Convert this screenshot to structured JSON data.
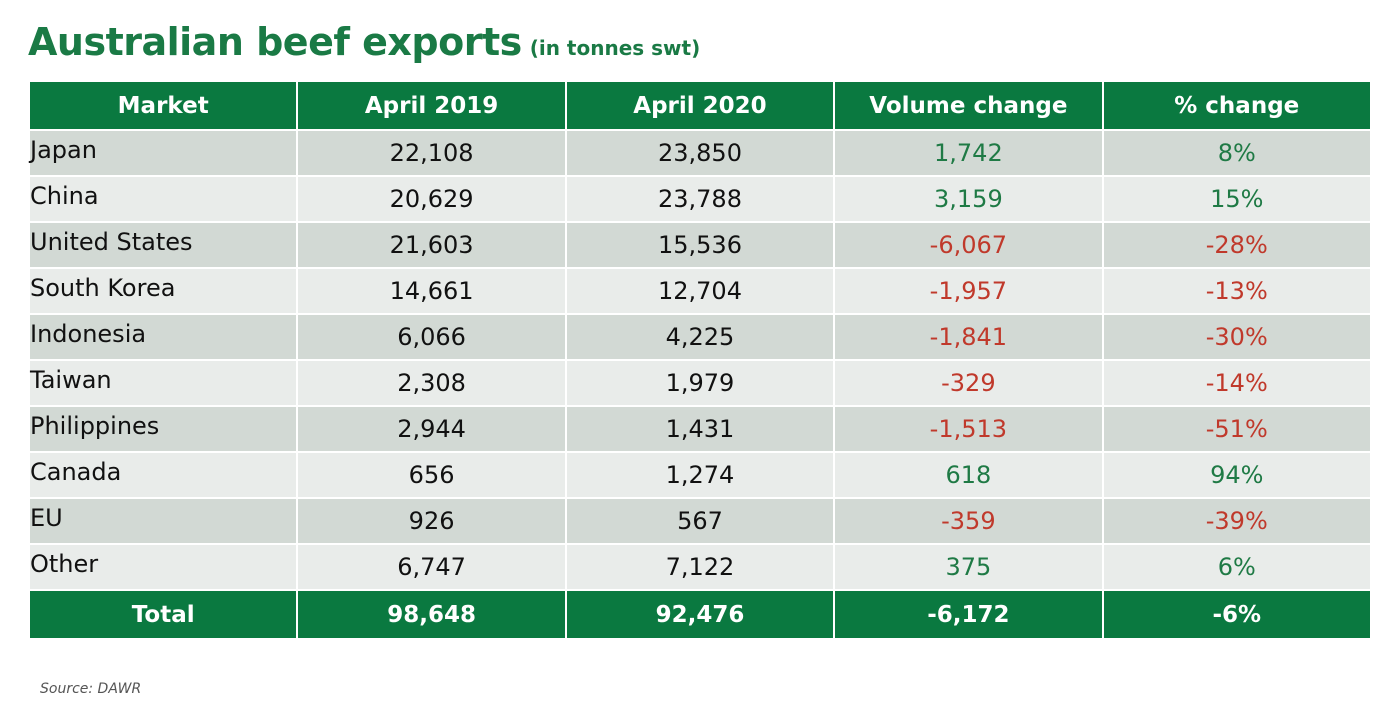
{
  "title": {
    "main": "Australian beef exports",
    "sub": "(in tonnes swt)",
    "color": "#1a7a45"
  },
  "table": {
    "headers": [
      "Market",
      "April 2019",
      "April 2020",
      "Volume change",
      "% change"
    ],
    "rows": [
      {
        "market": "Japan",
        "apr2019": "22,108",
        "apr2020": "23,850",
        "volume_change": "1,742",
        "pct_change": "8%",
        "trend": "positive"
      },
      {
        "market": "China",
        "apr2019": "20,629",
        "apr2020": "23,788",
        "volume_change": "3,159",
        "pct_change": "15%",
        "trend": "positive"
      },
      {
        "market": "United States",
        "apr2019": "21,603",
        "apr2020": "15,536",
        "volume_change": "-6,067",
        "pct_change": "-28%",
        "trend": "negative"
      },
      {
        "market": "South Korea",
        "apr2019": "14,661",
        "apr2020": "12,704",
        "volume_change": "-1,957",
        "pct_change": "-13%",
        "trend": "negative"
      },
      {
        "market": "Indonesia",
        "apr2019": "6,066",
        "apr2020": "4,225",
        "volume_change": "-1,841",
        "pct_change": "-30%",
        "trend": "negative"
      },
      {
        "market": "Taiwan",
        "apr2019": "2,308",
        "apr2020": "1,979",
        "volume_change": "-329",
        "pct_change": "-14%",
        "trend": "negative"
      },
      {
        "market": "Philippines",
        "apr2019": "2,944",
        "apr2020": "1,431",
        "volume_change": "-1,513",
        "pct_change": "-51%",
        "trend": "negative"
      },
      {
        "market": "Canada",
        "apr2019": "656",
        "apr2020": "1,274",
        "volume_change": "618",
        "pct_change": "94%",
        "trend": "positive"
      },
      {
        "market": "EU",
        "apr2019": "926",
        "apr2020": "567",
        "volume_change": "-359",
        "pct_change": "-39%",
        "trend": "negative"
      },
      {
        "market": "Other",
        "apr2019": "6,747",
        "apr2020": "7,122",
        "volume_change": "375",
        "pct_change": "6%",
        "trend": "positive"
      }
    ],
    "total": {
      "label": "Total",
      "apr2019": "98,648",
      "apr2020": "92,476",
      "volume_change": "-6,172",
      "pct_change": "-6%"
    },
    "colors": {
      "header_bg": "#0a7940",
      "positive": "#1f7a45",
      "negative": "#c0392b",
      "row_dark": "#d2d9d4",
      "row_light": "#e9ecea"
    }
  },
  "source": "Source: DAWR"
}
